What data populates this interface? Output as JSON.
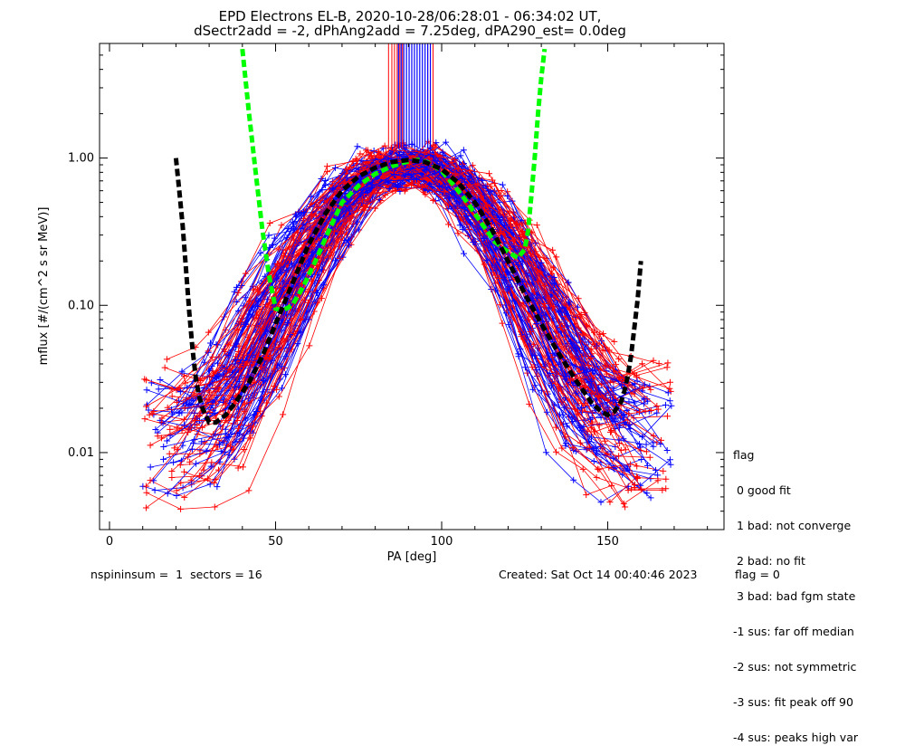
{
  "chart_data": {
    "type": "scatter",
    "title": "EPD Electrons EL-B, 2020-10-28/06:28:01 - 06:34:02 UT,",
    "subtitle": "dSectr2add = -2, dPhAng2add = 7.25deg, dPA290_est=   0.0deg",
    "xlabel": "PA [deg]",
    "ylabel": "mflux [#/(cm^2 s sr MeV)]",
    "xlim": [
      -3,
      185
    ],
    "ylim": [
      0.003,
      6
    ],
    "yscale": "log",
    "xticks": [
      {
        "v": 0,
        "label": "0"
      },
      {
        "v": 50,
        "label": "50"
      },
      {
        "v": 100,
        "label": "100"
      },
      {
        "v": 150,
        "label": "150"
      }
    ],
    "yticks": [
      {
        "v": 0.01,
        "label": "0.01"
      },
      {
        "v": 0.1,
        "label": "0.10"
      },
      {
        "v": 1,
        "label": "1.00"
      }
    ],
    "colors": {
      "red": "#ff0000",
      "blue": "#0000ff",
      "green": "#00ff00",
      "black": "#000000"
    },
    "series": [
      {
        "color": "#00ff00",
        "style": "dashed-thick",
        "x": [
          40,
          42,
          44,
          46,
          48,
          50,
          52,
          55,
          58,
          62,
          66,
          70,
          75,
          80,
          85,
          90,
          93,
          96,
          100,
          104,
          108,
          112,
          116,
          120,
          123,
          125,
          126,
          127,
          128,
          129,
          130,
          131
        ],
        "y": [
          5.5,
          2.0,
          0.8,
          0.33,
          0.16,
          0.095,
          0.092,
          0.1,
          0.13,
          0.2,
          0.32,
          0.5,
          0.65,
          0.78,
          0.88,
          0.95,
          0.97,
          0.93,
          0.82,
          0.64,
          0.49,
          0.36,
          0.27,
          0.23,
          0.21,
          0.24,
          0.32,
          0.55,
          1.0,
          2.0,
          3.5,
          5.5
        ]
      },
      {
        "color": "#000000",
        "style": "dashed-thick",
        "x": [
          20,
          21,
          22,
          23,
          24,
          25,
          26,
          27,
          28,
          30,
          32,
          35,
          38,
          42,
          46,
          50,
          55,
          60,
          65,
          70,
          75,
          80,
          85,
          90,
          95,
          100,
          105,
          110,
          115,
          120,
          125,
          130,
          135,
          140,
          145,
          148,
          150,
          152,
          154,
          155,
          156,
          157,
          158,
          159,
          160
        ],
        "y": [
          1.0,
          0.6,
          0.35,
          0.18,
          0.09,
          0.05,
          0.032,
          0.024,
          0.02,
          0.016,
          0.016,
          0.018,
          0.022,
          0.03,
          0.045,
          0.075,
          0.14,
          0.26,
          0.42,
          0.6,
          0.75,
          0.86,
          0.94,
          0.97,
          0.94,
          0.84,
          0.68,
          0.5,
          0.33,
          0.2,
          0.12,
          0.075,
          0.048,
          0.032,
          0.022,
          0.019,
          0.018,
          0.019,
          0.022,
          0.026,
          0.033,
          0.045,
          0.07,
          0.11,
          0.2
        ]
      }
    ],
    "vertical_lines": {
      "x_from": 84,
      "x_to": 98,
      "y_low": 1.18,
      "y_high": 6,
      "red": [
        84,
        85,
        85.8,
        86.6,
        87.4,
        88.2,
        95.8,
        96.6,
        97.4
      ],
      "blue": [
        87,
        87.8,
        88.6,
        89.4,
        90.2,
        91,
        91.8,
        92.6,
        93.4,
        94.2,
        95,
        95.8,
        96.6
      ]
    },
    "scatter_description": "Many red and blue pitch-angle traces peaking near 1.0 at PA~90 deg, falling to ~0.005-0.02 near PA 10-40 and 140-170"
  },
  "flag_legend": {
    "heading": "flag",
    "items": [
      " 0 good fit",
      " 1 bad: not converge",
      " 2 bad: no fit",
      " 3 bad: bad fgm state",
      "-1 sus: far off median",
      "-2 sus: not symmetric",
      "-3 sus: fit peak off 90",
      "-4 sus: peaks high var"
    ]
  },
  "footer": {
    "left": "nspininsum =  1  sectors = 16",
    "created": "Created: Sat Oct 14 00:40:46 2023",
    "flag": "flag = 0"
  }
}
